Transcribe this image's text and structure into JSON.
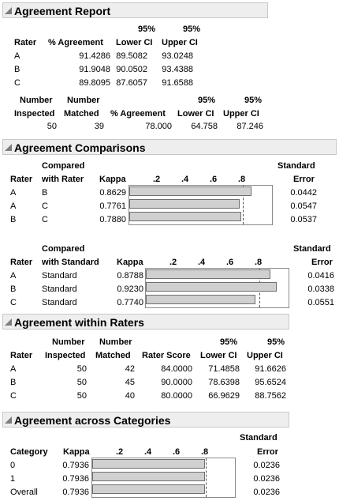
{
  "agreement_report": {
    "title": "Agreement Report",
    "raters_table": {
      "headers": {
        "rater": "Rater",
        "pct": "% Agreement",
        "ci95_a": "95%",
        "ci95_b": "95%",
        "lower": "Lower CI",
        "upper": "Upper CI"
      },
      "rows": [
        {
          "rater": "A",
          "pct": "91.4286",
          "lower": "89.5082",
          "upper": "93.0248"
        },
        {
          "rater": "B",
          "pct": "91.9048",
          "lower": "90.0502",
          "upper": "93.4388"
        },
        {
          "rater": "C",
          "pct": "89.8095",
          "lower": "87.6057",
          "upper": "91.6588"
        }
      ]
    },
    "overall_table": {
      "headers": {
        "number1": "Number",
        "inspected": "Inspected",
        "number2": "Number",
        "matched": "Matched",
        "pct": "% Agreement",
        "ci95_a": "95%",
        "ci95_b": "95%",
        "lower": "Lower CI",
        "upper": "Upper CI"
      },
      "row": {
        "inspected": "50",
        "matched": "39",
        "pct": "78.000",
        "lower": "64.758",
        "upper": "87.246"
      }
    }
  },
  "agreement_comparisons": {
    "title": "Agreement Comparisons",
    "rater_table": {
      "headers": {
        "rater": "Rater",
        "compared": "Compared",
        "with": "with Rater",
        "kappa": "Kappa",
        "standard": "Standard",
        "error": "Error"
      },
      "ticks": [
        ".2",
        ".4",
        ".6",
        ".8"
      ],
      "rows": [
        {
          "rater": "A",
          "with": "B",
          "kappa": "0.8629",
          "kappa_value": 0.8629,
          "se": "0.0442"
        },
        {
          "rater": "A",
          "with": "C",
          "kappa": "0.7761",
          "kappa_value": 0.7761,
          "se": "0.0547"
        },
        {
          "rater": "B",
          "with": "C",
          "kappa": "0.7880",
          "kappa_value": 0.788,
          "se": "0.0537"
        }
      ]
    },
    "standard_table": {
      "headers": {
        "rater": "Rater",
        "compared": "Compared",
        "with": "with Standard",
        "kappa": "Kappa",
        "standard": "Standard",
        "error": "Error"
      },
      "ticks": [
        ".2",
        ".4",
        ".6",
        ".8"
      ],
      "rows": [
        {
          "rater": "A",
          "with": "Standard",
          "kappa": "0.8788",
          "kappa_value": 0.8788,
          "se": "0.0416"
        },
        {
          "rater": "B",
          "with": "Standard",
          "kappa": "0.9230",
          "kappa_value": 0.923,
          "se": "0.0338"
        },
        {
          "rater": "C",
          "with": "Standard",
          "kappa": "0.7740",
          "kappa_value": 0.774,
          "se": "0.0551"
        }
      ]
    }
  },
  "agreement_within": {
    "title": "Agreement within Raters",
    "headers": {
      "rater": "Rater",
      "number1": "Number",
      "inspected": "Inspected",
      "number2": "Number",
      "matched": "Matched",
      "score": "Rater Score",
      "ci95_a": "95%",
      "ci95_b": "95%",
      "lower": "Lower CI",
      "upper": "Upper CI"
    },
    "rows": [
      {
        "rater": "A",
        "inspected": "50",
        "matched": "42",
        "score": "84.0000",
        "lower": "71.4858",
        "upper": "91.6626"
      },
      {
        "rater": "B",
        "inspected": "50",
        "matched": "45",
        "score": "90.0000",
        "lower": "78.6398",
        "upper": "95.6524"
      },
      {
        "rater": "C",
        "inspected": "50",
        "matched": "40",
        "score": "80.0000",
        "lower": "66.9629",
        "upper": "88.7562"
      }
    ]
  },
  "agreement_categories": {
    "title": "Agreement across Categories",
    "headers": {
      "category": "Category",
      "kappa": "Kappa",
      "standard": "Standard",
      "error": "Error"
    },
    "ticks": [
      ".2",
      ".4",
      ".6",
      ".8"
    ],
    "rows": [
      {
        "category": "0",
        "kappa": "0.7936",
        "kappa_value": 0.7936,
        "se": "0.0236"
      },
      {
        "category": "1",
        "kappa": "0.7936",
        "kappa_value": 0.7936,
        "se": "0.0236"
      },
      {
        "category": "Overall",
        "kappa": "0.7936",
        "kappa_value": 0.7936,
        "se": "0.0236"
      }
    ]
  },
  "colors": {
    "header_bg": "#eeeeee",
    "bar_fill": "#d0d0d0",
    "bar_border": "#6f6f6f"
  }
}
